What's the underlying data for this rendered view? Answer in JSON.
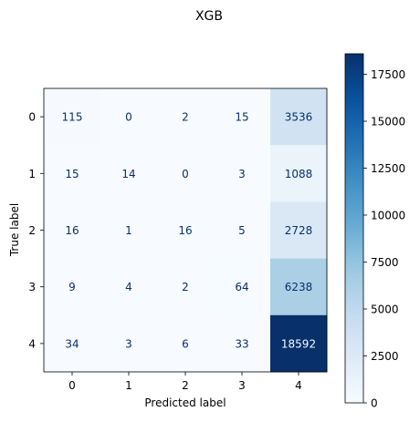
{
  "chart_data": {
    "type": "heatmap",
    "title": "XGB",
    "xlabel": "Predicted label",
    "ylabel": "True label",
    "x_categories": [
      "0",
      "1",
      "2",
      "3",
      "4"
    ],
    "y_categories": [
      "0",
      "1",
      "2",
      "3",
      "4"
    ],
    "matrix": [
      [
        115,
        0,
        2,
        15,
        3536
      ],
      [
        15,
        14,
        0,
        3,
        1088
      ],
      [
        16,
        1,
        16,
        5,
        2728
      ],
      [
        9,
        4,
        2,
        64,
        6238
      ],
      [
        34,
        3,
        6,
        33,
        18592
      ]
    ],
    "colormap": "Blues",
    "value_range": [
      0,
      18592
    ],
    "colorbar_ticks": [
      0,
      2500,
      5000,
      7500,
      10000,
      12500,
      15000,
      17500
    ],
    "colors": {
      "low": "#f7fbff",
      "high": "#08306b",
      "text_dark": "#08306b",
      "text_light": "#f7fbff"
    }
  }
}
